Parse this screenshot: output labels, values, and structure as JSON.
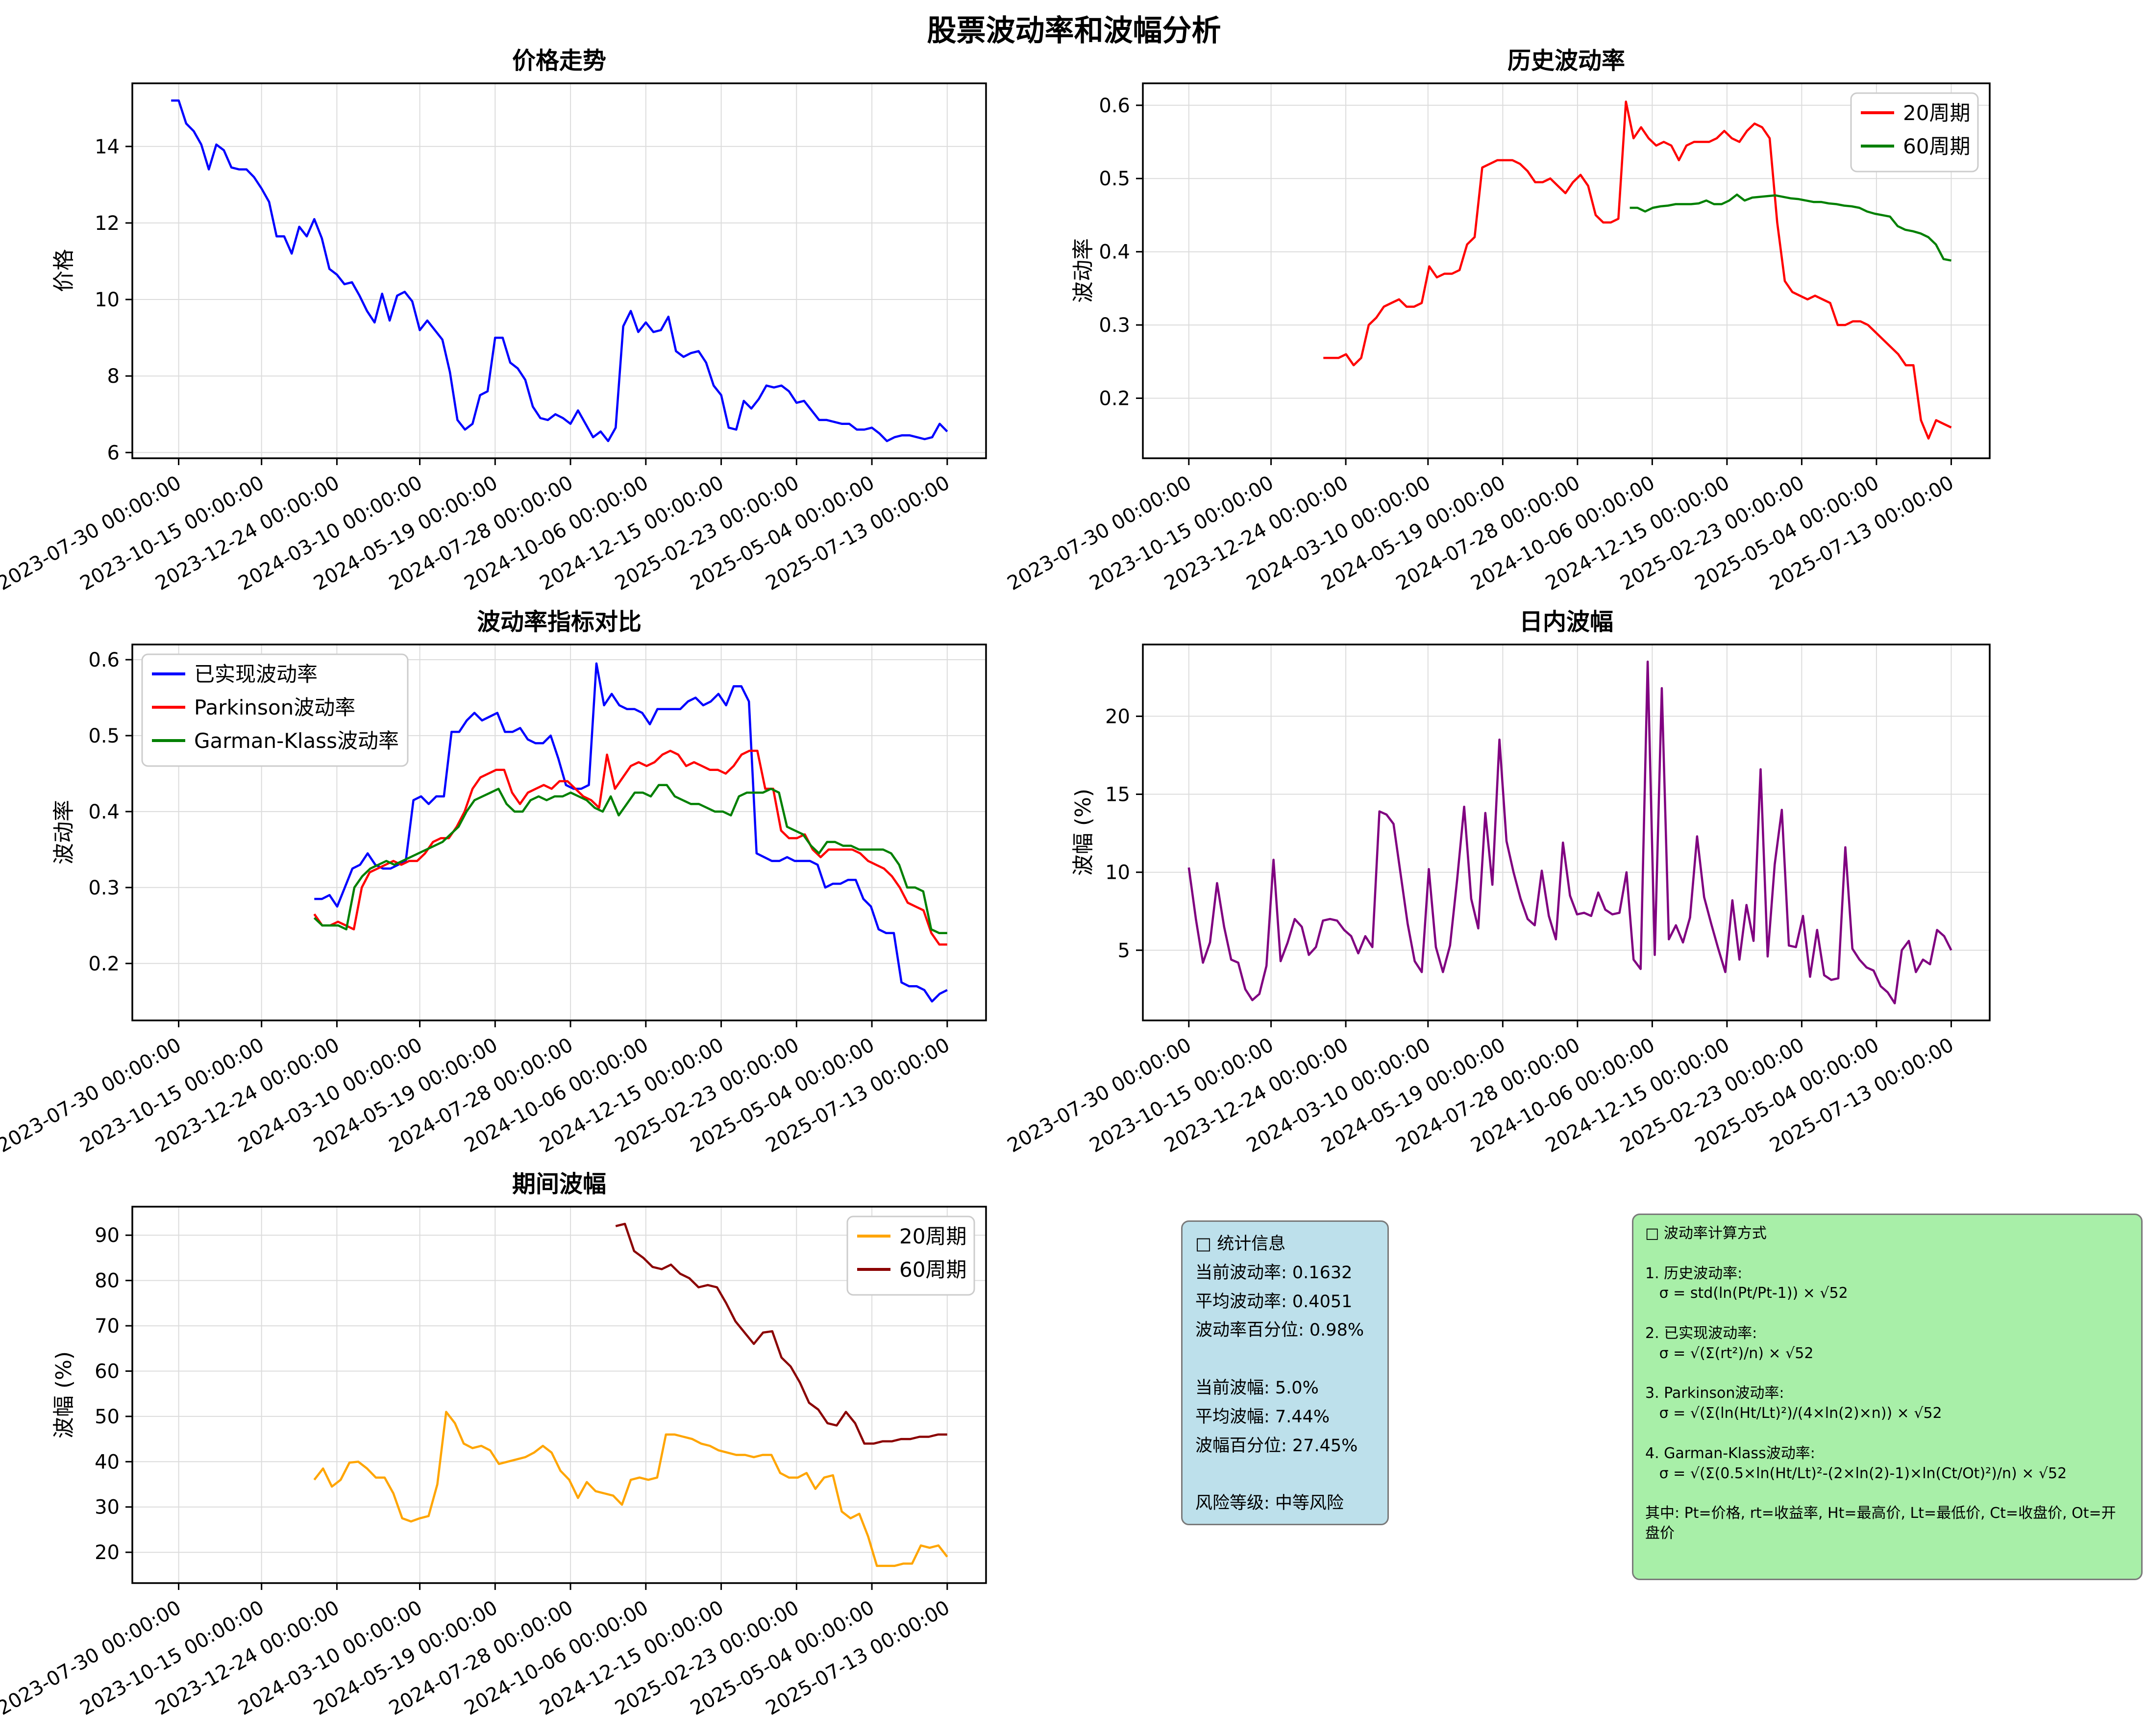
{
  "suptitle": "股票波动率和波幅分析",
  "x_axis": {
    "xlim": [
      -5.15,
      108.15
    ],
    "tick_positions": [
      1,
      12,
      22,
      33,
      43,
      53,
      63,
      73,
      83,
      93,
      103
    ],
    "tick_labels": [
      "2023-07-30 00:00:00",
      "2023-10-15 00:00:00",
      "2023-12-24 00:00:00",
      "2024-03-10 00:00:00",
      "2024-05-19 00:00:00",
      "2024-07-28 00:00:00",
      "2024-10-06 00:00:00",
      "2024-12-15 00:00:00",
      "2025-02-23 00:00:00",
      "2025-05-04 00:00:00",
      "2025-07-13 00:00:00"
    ]
  },
  "chart_data": [
    {
      "id": "price-trend",
      "type": "line",
      "title": "价格走势",
      "ylabel": "价格",
      "ylim": [
        5.85,
        15.65
      ],
      "yticks": [
        6,
        8,
        10,
        12,
        14
      ],
      "ytick_labels": [
        "6",
        "8",
        "10",
        "12",
        "14"
      ],
      "series": [
        {
          "name": "价格",
          "color": "#0000FF",
          "x0": 0,
          "values": [
            15.2,
            15.2,
            14.6,
            14.4,
            14.05,
            13.4,
            14.05,
            13.9,
            13.45,
            13.4,
            13.4,
            13.2,
            12.9,
            12.55,
            11.65,
            11.65,
            11.2,
            11.9,
            11.65,
            12.1,
            11.6,
            10.8,
            10.65,
            10.4,
            10.45,
            10.1,
            9.7,
            9.4,
            10.15,
            9.45,
            10.1,
            10.2,
            9.95,
            9.2,
            9.45,
            9.2,
            8.95,
            8.1,
            6.85,
            6.6,
            6.75,
            7.5,
            7.6,
            9.0,
            9.0,
            8.35,
            8.2,
            7.9,
            7.2,
            6.9,
            6.85,
            7.0,
            6.9,
            6.75,
            7.1,
            6.75,
            6.4,
            6.55,
            6.3,
            6.65,
            9.3,
            9.7,
            9.15,
            9.4,
            9.15,
            9.2,
            9.55,
            8.65,
            8.5,
            8.6,
            8.65,
            8.35,
            7.75,
            7.5,
            6.65,
            6.6,
            7.35,
            7.15,
            7.4,
            7.75,
            7.7,
            7.75,
            7.6,
            7.3,
            7.35,
            7.1,
            6.85,
            6.85,
            6.8,
            6.75,
            6.75,
            6.6,
            6.6,
            6.65,
            6.5,
            6.3,
            6.4,
            6.45,
            6.45,
            6.4,
            6.35,
            6.4,
            6.75,
            6.55
          ]
        }
      ]
    },
    {
      "id": "historical-volatility",
      "type": "line",
      "title": "历史波动率",
      "ylabel": "波动率",
      "ylim": [
        0.118,
        0.63
      ],
      "yticks": [
        0.2,
        0.3,
        0.4,
        0.5,
        0.6
      ],
      "ytick_labels": [
        "0.2",
        "0.3",
        "0.4",
        "0.5",
        "0.6"
      ],
      "legend": {
        "loc": "top-right",
        "items": [
          {
            "label": "20周期",
            "color": "#FF0000"
          },
          {
            "label": "60周期",
            "color": "#008000"
          }
        ]
      },
      "series": [
        {
          "name": "20周期",
          "color": "#FF0000",
          "x0": 19,
          "values": [
            0.255,
            0.255,
            0.255,
            0.26,
            0.245,
            0.255,
            0.3,
            0.31,
            0.325,
            0.33,
            0.335,
            0.325,
            0.325,
            0.33,
            0.38,
            0.365,
            0.37,
            0.37,
            0.375,
            0.41,
            0.42,
            0.515,
            0.52,
            0.525,
            0.525,
            0.525,
            0.52,
            0.51,
            0.495,
            0.495,
            0.5,
            0.49,
            0.48,
            0.495,
            0.505,
            0.49,
            0.45,
            0.44,
            0.44,
            0.445,
            0.605,
            0.555,
            0.57,
            0.555,
            0.545,
            0.55,
            0.545,
            0.525,
            0.545,
            0.55,
            0.55,
            0.55,
            0.555,
            0.565,
            0.555,
            0.55,
            0.565,
            0.575,
            0.57,
            0.555,
            0.44,
            0.36,
            0.345,
            0.34,
            0.335,
            0.34,
            0.335,
            0.33,
            0.3,
            0.3,
            0.305,
            0.305,
            0.3,
            0.29,
            0.28,
            0.27,
            0.26,
            0.245,
            0.245,
            0.17,
            0.145,
            0.17,
            0.165,
            0.16
          ]
        },
        {
          "name": "60周期",
          "color": "#008000",
          "x0": 60,
          "values": [
            0.46,
            0.46,
            0.455,
            0.46,
            0.462,
            0.463,
            0.465,
            0.465,
            0.465,
            0.466,
            0.47,
            0.465,
            0.465,
            0.47,
            0.478,
            0.47,
            0.474,
            0.475,
            0.476,
            0.477,
            0.475,
            0.473,
            0.472,
            0.47,
            0.468,
            0.468,
            0.466,
            0.465,
            0.463,
            0.462,
            0.46,
            0.455,
            0.452,
            0.45,
            0.448,
            0.435,
            0.43,
            0.428,
            0.425,
            0.42,
            0.41,
            0.39,
            0.388
          ]
        }
      ]
    },
    {
      "id": "volatility-comparison",
      "type": "line",
      "title": "波动率指标对比",
      "ylabel": "波动率",
      "ylim": [
        0.125,
        0.62
      ],
      "yticks": [
        0.2,
        0.3,
        0.4,
        0.5,
        0.6
      ],
      "ytick_labels": [
        "0.2",
        "0.3",
        "0.4",
        "0.5",
        "0.6"
      ],
      "legend": {
        "loc": "top-left",
        "items": [
          {
            "label": "已实现波动率",
            "color": "#0000FF"
          },
          {
            "label": "Parkinson波动率",
            "color": "#FF0000"
          },
          {
            "label": "Garman-Klass波动率",
            "color": "#008000"
          }
        ]
      },
      "series": [
        {
          "name": "已实现波动率",
          "color": "#0000FF",
          "x0": 19,
          "values": [
            0.285,
            0.285,
            0.29,
            0.275,
            0.3,
            0.325,
            0.33,
            0.345,
            0.33,
            0.325,
            0.325,
            0.33,
            0.335,
            0.415,
            0.42,
            0.41,
            0.42,
            0.42,
            0.505,
            0.505,
            0.52,
            0.53,
            0.52,
            0.525,
            0.53,
            0.505,
            0.505,
            0.51,
            0.495,
            0.49,
            0.49,
            0.5,
            0.47,
            0.435,
            0.43,
            0.43,
            0.435,
            0.595,
            0.54,
            0.555,
            0.54,
            0.535,
            0.535,
            0.53,
            0.515,
            0.535,
            0.535,
            0.535,
            0.535,
            0.545,
            0.55,
            0.54,
            0.545,
            0.555,
            0.54,
            0.565,
            0.565,
            0.545,
            0.345,
            0.34,
            0.335,
            0.335,
            0.34,
            0.335,
            0.335,
            0.335,
            0.33,
            0.3,
            0.305,
            0.305,
            0.31,
            0.31,
            0.285,
            0.275,
            0.245,
            0.24,
            0.24,
            0.175,
            0.17,
            0.17,
            0.165,
            0.15,
            0.16,
            0.165
          ]
        },
        {
          "name": "Parkinson波动率",
          "color": "#FF0000",
          "x0": 19,
          "values": [
            0.265,
            0.25,
            0.25,
            0.255,
            0.25,
            0.245,
            0.3,
            0.32,
            0.325,
            0.33,
            0.335,
            0.33,
            0.335,
            0.335,
            0.345,
            0.36,
            0.365,
            0.365,
            0.38,
            0.4,
            0.43,
            0.445,
            0.45,
            0.455,
            0.455,
            0.425,
            0.41,
            0.425,
            0.43,
            0.435,
            0.43,
            0.44,
            0.44,
            0.43,
            0.42,
            0.415,
            0.405,
            0.475,
            0.43,
            0.445,
            0.46,
            0.465,
            0.46,
            0.465,
            0.475,
            0.48,
            0.475,
            0.46,
            0.465,
            0.46,
            0.455,
            0.455,
            0.45,
            0.46,
            0.475,
            0.48,
            0.48,
            0.43,
            0.43,
            0.375,
            0.365,
            0.365,
            0.37,
            0.35,
            0.34,
            0.35,
            0.35,
            0.35,
            0.35,
            0.345,
            0.335,
            0.33,
            0.325,
            0.315,
            0.3,
            0.28,
            0.275,
            0.27,
            0.24,
            0.225,
            0.225
          ]
        },
        {
          "name": "Garman-Klass波动率",
          "color": "#008000",
          "x0": 19,
          "values": [
            0.26,
            0.25,
            0.25,
            0.25,
            0.245,
            0.3,
            0.315,
            0.325,
            0.33,
            0.335,
            0.33,
            0.335,
            0.34,
            0.345,
            0.35,
            0.355,
            0.36,
            0.37,
            0.38,
            0.4,
            0.415,
            0.42,
            0.425,
            0.43,
            0.41,
            0.4,
            0.4,
            0.415,
            0.42,
            0.415,
            0.42,
            0.42,
            0.425,
            0.42,
            0.415,
            0.405,
            0.4,
            0.42,
            0.395,
            0.41,
            0.425,
            0.425,
            0.42,
            0.435,
            0.435,
            0.42,
            0.415,
            0.41,
            0.41,
            0.405,
            0.4,
            0.4,
            0.395,
            0.42,
            0.425,
            0.425,
            0.425,
            0.43,
            0.425,
            0.38,
            0.375,
            0.37,
            0.355,
            0.345,
            0.36,
            0.36,
            0.355,
            0.355,
            0.35,
            0.35,
            0.35,
            0.35,
            0.345,
            0.33,
            0.3,
            0.3,
            0.295,
            0.245,
            0.24,
            0.24
          ]
        }
      ]
    },
    {
      "id": "intraday-amplitude",
      "type": "line",
      "title": "日内波幅",
      "ylabel": "波幅 (%)",
      "ylim": [
        0.5,
        24.6
      ],
      "yticks": [
        5,
        10,
        15,
        20
      ],
      "ytick_labels": [
        "5",
        "10",
        "15",
        "20"
      ],
      "series": [
        {
          "name": "日内波幅",
          "color": "#800080",
          "x0": 1,
          "values": [
            10.3,
            7.0,
            4.2,
            5.5,
            9.3,
            6.5,
            4.4,
            4.2,
            2.5,
            1.8,
            2.2,
            4.0,
            10.8,
            4.3,
            5.5,
            7.0,
            6.5,
            4.7,
            5.2,
            6.9,
            7.0,
            6.9,
            6.3,
            5.9,
            4.8,
            5.9,
            5.2,
            13.9,
            13.7,
            13.1,
            9.9,
            6.7,
            4.3,
            3.6,
            10.2,
            5.2,
            3.6,
            5.3,
            9.5,
            14.2,
            8.3,
            6.4,
            13.8,
            9.2,
            18.5,
            12.0,
            10.0,
            8.3,
            7.0,
            6.6,
            10.1,
            7.2,
            5.7,
            11.9,
            8.5,
            7.3,
            7.4,
            7.2,
            8.7,
            7.6,
            7.3,
            7.4,
            10.0,
            4.4,
            3.8,
            23.5,
            4.7,
            21.8,
            5.7,
            6.6,
            5.5,
            7.1,
            12.3,
            8.4,
            6.7,
            5.1,
            3.6,
            8.2,
            4.4,
            7.9,
            5.6,
            16.6,
            4.6,
            10.5,
            14.0,
            5.3,
            5.2,
            7.2,
            3.3,
            6.3,
            3.4,
            3.1,
            3.2,
            11.6,
            5.1,
            4.4,
            3.9,
            3.7,
            2.7,
            2.3,
            1.6,
            5.0,
            5.6,
            3.6,
            4.4,
            4.1,
            6.3,
            5.9,
            5.0
          ]
        }
      ]
    },
    {
      "id": "period-amplitude",
      "type": "line",
      "title": "期间波幅",
      "ylabel": "波幅 (%)",
      "ylim": [
        13.2,
        96.3
      ],
      "yticks": [
        20,
        30,
        40,
        50,
        60,
        70,
        80,
        90
      ],
      "ytick_labels": [
        "20",
        "30",
        "40",
        "50",
        "60",
        "70",
        "80",
        "90"
      ],
      "legend": {
        "loc": "top-right",
        "items": [
          {
            "label": "20周期",
            "color": "#FFA500"
          },
          {
            "label": "60周期",
            "color": "#8B0000"
          }
        ]
      },
      "series": [
        {
          "name": "20周期",
          "color": "#FFA500",
          "x0": 19,
          "values": [
            36,
            38.5,
            34.5,
            36,
            39.8,
            40,
            38.5,
            36.5,
            36.5,
            33,
            27.5,
            26.8,
            27.5,
            28,
            35,
            51,
            48.5,
            44,
            43,
            43.5,
            42.5,
            39.5,
            40,
            40.5,
            41,
            42,
            43.5,
            42,
            38,
            36,
            32,
            35.5,
            33.5,
            33,
            32.5,
            30.5,
            36,
            36.5,
            36,
            36.5,
            46,
            46,
            45.5,
            45,
            44,
            43.5,
            42.5,
            42,
            41.5,
            41.5,
            41,
            41.5,
            41.5,
            37.5,
            36.5,
            36.5,
            37.5,
            34,
            36.5,
            37,
            29,
            27.5,
            28.5,
            23.5,
            17,
            17,
            17,
            17.5,
            17.5,
            21.5,
            21,
            21.5,
            19
          ]
        },
        {
          "name": "60周期",
          "color": "#8B0000",
          "x0": 59,
          "values": [
            92,
            92.5,
            86.5,
            85,
            83,
            82.5,
            83.5,
            81.5,
            80.5,
            78.5,
            79,
            78.5,
            75,
            71,
            68.5,
            66,
            68.5,
            68.8,
            63,
            61,
            57.5,
            53,
            51.5,
            48.5,
            48,
            51,
            48.5,
            44,
            44,
            44.5,
            44.5,
            45,
            45,
            45.5,
            45.5,
            46,
            46
          ]
        }
      ]
    }
  ],
  "stats_box": {
    "text": "□ 统计信息\n当前波动率: 0.1632\n平均波动率: 0.4051\n波动率百分位: 0.98%\n\n当前波幅: 5.0%\n平均波幅: 7.44%\n波幅百分位: 27.45%\n\n风险等级: 中等风险"
  },
  "formula_box": {
    "text": "□ 波动率计算方式\n\n1. 历史波动率:\n   σ = std(ln(Pt/Pt-1)) × √52\n\n2. 已实现波动率:\n   σ = √(Σ(rt²)/n) × √52\n\n3. Parkinson波动率:\n   σ = √(Σ(ln(Ht/Lt)²)/(4×ln(2)×n)) × √52\n\n4. Garman-Klass波动率:\n   σ = √(Σ(0.5×ln(Ht/Lt)²-(2×ln(2)-1)×ln(Ct/Ot)²)/n) × √52\n\n其中: Pt=价格, rt=收益率, Ht=最高价, Lt=最低价, Ct=收盘价, Ot=开盘价"
  }
}
